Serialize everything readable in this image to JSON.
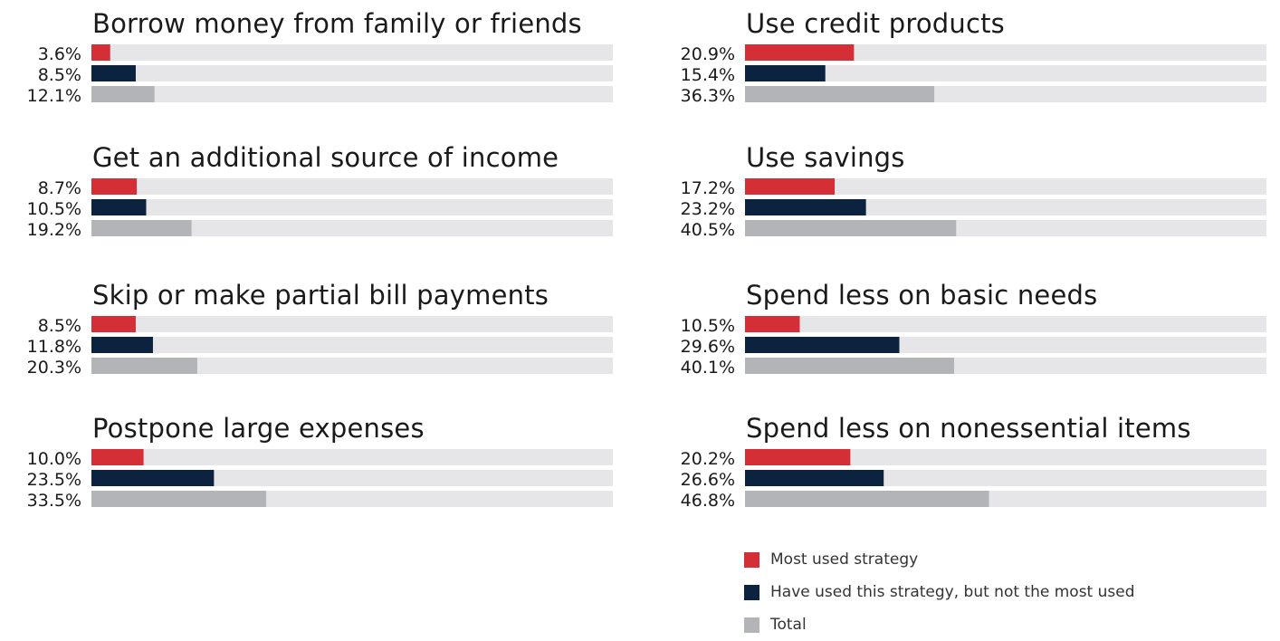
{
  "chart_data": {
    "type": "bar",
    "orientation": "horizontal",
    "xlim": [
      0,
      100
    ],
    "panels": [
      {
        "title": "Borrow money from family or friends",
        "values": [
          3.6,
          8.5,
          12.1
        ],
        "labels": [
          "3.6%",
          "8.5%",
          "12.1%"
        ]
      },
      {
        "title": "Get an additional source of income",
        "values": [
          8.7,
          10.5,
          19.2
        ],
        "labels": [
          "8.7%",
          "10.5%",
          "19.2%"
        ]
      },
      {
        "title": "Skip or make partial bill payments",
        "values": [
          8.5,
          11.8,
          20.3
        ],
        "labels": [
          "8.5%",
          "11.8%",
          "20.3%"
        ]
      },
      {
        "title": "Postpone large expenses",
        "values": [
          10.0,
          23.5,
          33.5
        ],
        "labels": [
          "10.0%",
          "23.5%",
          "33.5%"
        ]
      },
      {
        "title": "Use credit products",
        "values": [
          20.9,
          15.4,
          36.3
        ],
        "labels": [
          "20.9%",
          "15.4%",
          "36.3%"
        ]
      },
      {
        "title": "Use savings",
        "values": [
          17.2,
          23.2,
          40.5
        ],
        "labels": [
          "17.2%",
          "23.2%",
          "40.5%"
        ]
      },
      {
        "title": "Spend less on basic needs",
        "values": [
          10.5,
          29.6,
          40.1
        ],
        "labels": [
          "10.5%",
          "29.6%",
          "40.1%"
        ]
      },
      {
        "title": "Spend less on nonessential items",
        "values": [
          20.2,
          26.6,
          46.8
        ],
        "labels": [
          "20.2%",
          "26.6%",
          "46.8%"
        ]
      }
    ],
    "series": [
      {
        "name": "Most used strategy",
        "color": "#d42f37"
      },
      {
        "name": "Have used this strategy, but not the most used",
        "color": "#0c2340"
      },
      {
        "name": "Total",
        "color": "#b2b4b7"
      }
    ],
    "track_color": "#e6e6e8",
    "legend_position": "bottom-right"
  }
}
